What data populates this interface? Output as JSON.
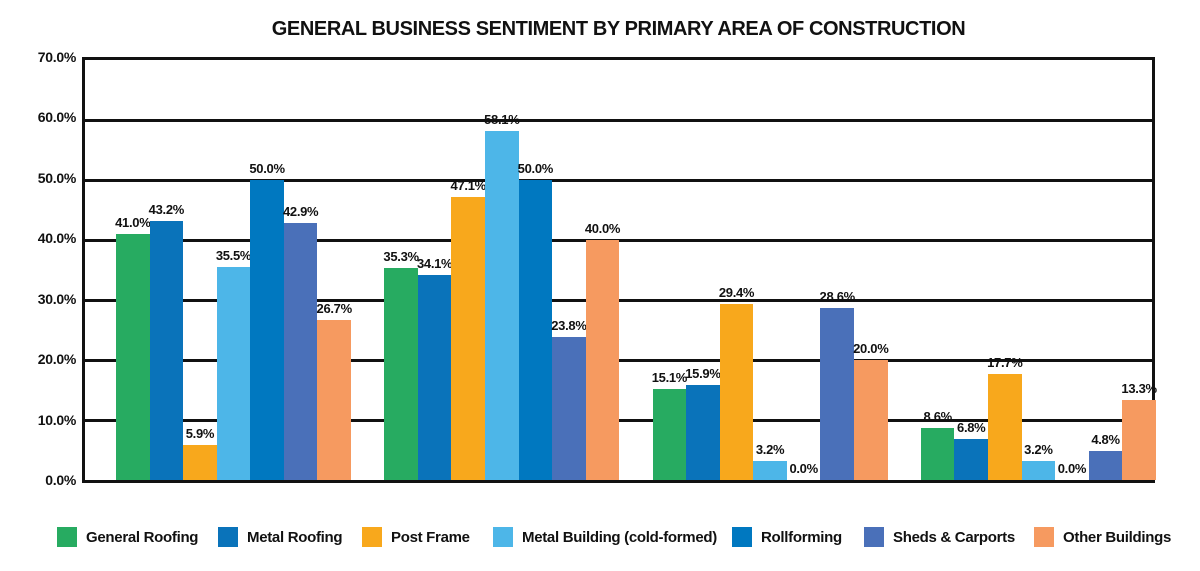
{
  "chart_data": {
    "type": "bar",
    "title": "GENERAL BUSINESS SENTIMENT BY PRIMARY AREA OF CONSTRUCTION",
    "xlabel": "",
    "ylabel": "",
    "ylim": [
      0,
      70
    ],
    "y_tick_step": 10,
    "y_tick_labels": [
      "70.0%",
      "60.0%",
      "50.0%",
      "40.0%",
      "30.0%",
      "20.0%",
      "10.0%",
      "0.0%"
    ],
    "grid": "horizontal",
    "legend_position": "bottom",
    "group_count": 4,
    "categories": [
      "",
      "",
      "",
      ""
    ],
    "series": [
      {
        "name": "General Roofing",
        "color": "#27AB61",
        "values": [
          41.0,
          35.3,
          15.1,
          8.6
        ],
        "labels": [
          "41.0%",
          "35.3%",
          "15.1%",
          "8.6%"
        ]
      },
      {
        "name": "Metal Roofing",
        "color": "#0A73BA",
        "values": [
          43.2,
          34.1,
          15.9,
          6.8
        ],
        "labels": [
          "43.2%",
          "34.1%",
          "15.9%",
          "6.8%"
        ]
      },
      {
        "name": "Post Frame",
        "color": "#F8A81C",
        "values": [
          5.9,
          47.1,
          29.4,
          17.7
        ],
        "labels": [
          "5.9%",
          "47.1%",
          "29.4%",
          "17.7%"
        ]
      },
      {
        "name": "Metal Building (cold-formed)",
        "color": "#4DB6E8",
        "values": [
          35.5,
          58.1,
          3.2,
          3.2
        ],
        "labels": [
          "35.5%",
          "58.1%",
          "3.2%",
          "3.2%"
        ]
      },
      {
        "name": "Rollforming",
        "color": "#0078C0",
        "values": [
          50.0,
          50.0,
          0.0,
          0.0
        ],
        "labels": [
          "50.0%",
          "50.0%",
          "0.0%",
          "0.0%"
        ]
      },
      {
        "name": "Sheds & Carports",
        "color": "#4A70B9",
        "values": [
          42.9,
          23.8,
          28.6,
          4.8
        ],
        "labels": [
          "42.9%",
          "23.8%",
          "28.6%",
          "4.8%"
        ]
      },
      {
        "name": "Other Buildings",
        "color": "#F69A60",
        "values": [
          26.7,
          40.0,
          20.0,
          13.3
        ],
        "labels": [
          "26.7%",
          "40.0%",
          "20.0%",
          "13.3%"
        ]
      }
    ]
  }
}
